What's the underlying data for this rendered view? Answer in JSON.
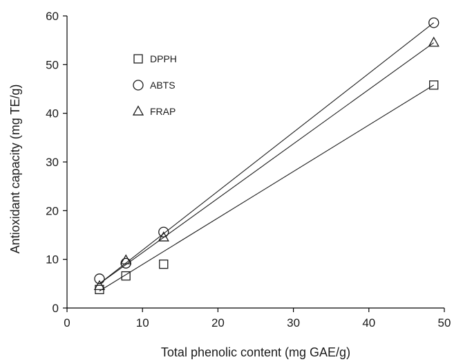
{
  "chart_data": {
    "type": "scatter",
    "title": "",
    "xlabel": "Total phenolic content (mg GAE/g)",
    "ylabel": "Antioxidant capacity (mg TE/g)",
    "xlim": [
      0,
      50
    ],
    "ylim": [
      0,
      60
    ],
    "xticks": [
      0,
      10,
      20,
      30,
      40,
      50
    ],
    "yticks": [
      0,
      10,
      20,
      30,
      40,
      50,
      60
    ],
    "xtick_labels": [
      "0",
      "10",
      "20",
      "30",
      "40",
      "50"
    ],
    "ytick_labels": [
      "0",
      "10",
      "20",
      "30",
      "40",
      "50",
      "60"
    ],
    "grid": false,
    "legend_position": "upper-left",
    "trendlines": "linear fit per series",
    "series": [
      {
        "name": "DPPH",
        "marker": "square",
        "x": [
          4.3,
          7.8,
          12.8,
          48.6
        ],
        "y": [
          3.8,
          6.6,
          9.0,
          45.8
        ],
        "fit": [
          [
            4.3,
            3.5
          ],
          [
            48.6,
            45.8
          ]
        ]
      },
      {
        "name": "ABTS",
        "marker": "circle",
        "x": [
          4.3,
          7.8,
          12.8,
          48.6
        ],
        "y": [
          6.0,
          9.2,
          15.6,
          58.6
        ],
        "fit": [
          [
            4.3,
            5.0
          ],
          [
            48.6,
            58.6
          ]
        ]
      },
      {
        "name": "FRAP",
        "marker": "triangle",
        "x": [
          4.3,
          7.8,
          12.8,
          48.6
        ],
        "y": [
          4.5,
          9.8,
          14.5,
          54.5
        ],
        "fit": [
          [
            4.3,
            5.0
          ],
          [
            48.6,
            54.5
          ]
        ]
      }
    ]
  }
}
